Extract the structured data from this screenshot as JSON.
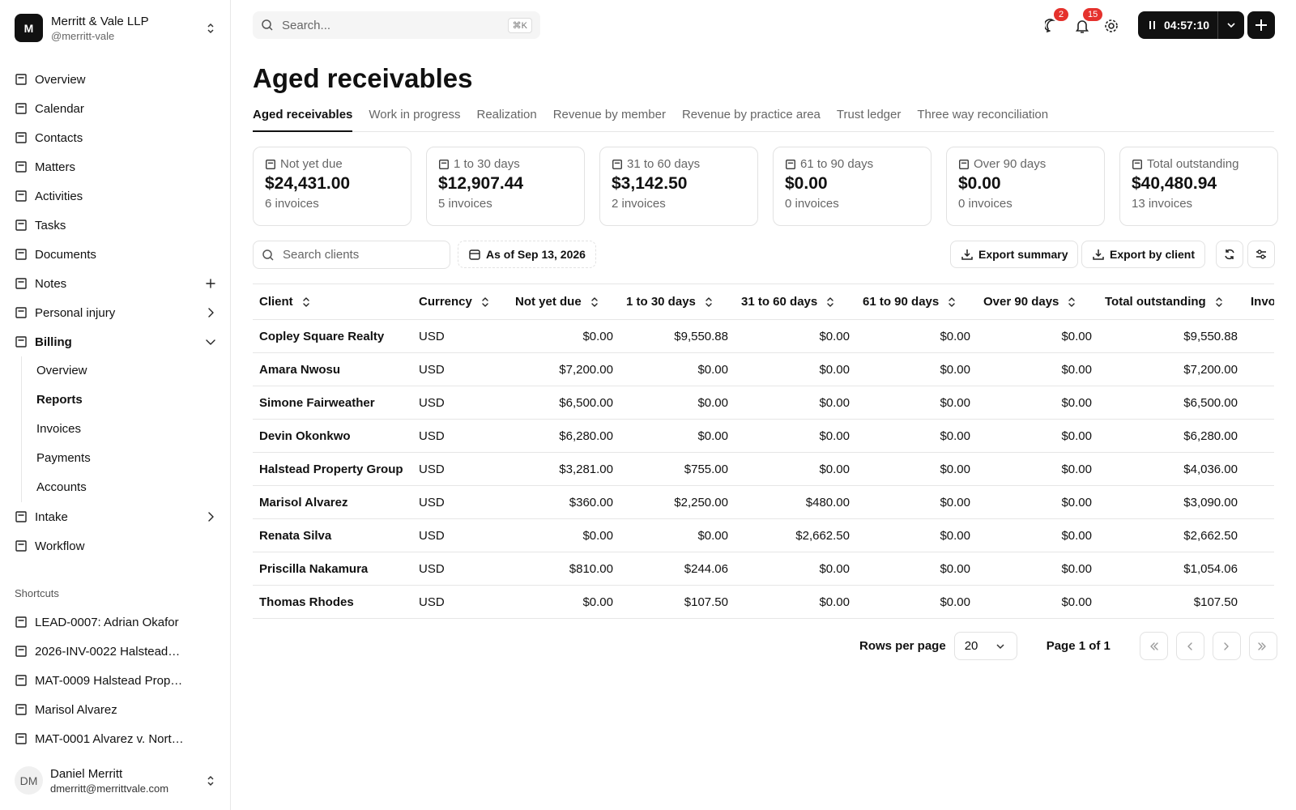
{
  "sidebar": {
    "org": {
      "initial": "M",
      "name": "Merritt & Vale LLP",
      "handle": "@merritt-vale"
    },
    "nav": [
      {
        "label": "Overview"
      },
      {
        "label": "Calendar"
      },
      {
        "label": "Contacts"
      },
      {
        "label": "Matters"
      },
      {
        "label": "Activities"
      },
      {
        "label": "Tasks"
      },
      {
        "label": "Documents"
      },
      {
        "label": "Notes",
        "trailing": "plus"
      },
      {
        "label": "Personal injury",
        "trailing": "right"
      },
      {
        "label": "Billing",
        "trailing": "down",
        "bold": true,
        "children": [
          {
            "label": "Overview"
          },
          {
            "label": "Reports",
            "active": true
          },
          {
            "label": "Invoices"
          },
          {
            "label": "Payments"
          },
          {
            "label": "Accounts"
          }
        ]
      },
      {
        "label": "Intake",
        "trailing": "right"
      },
      {
        "label": "Workflow"
      }
    ],
    "shortcuts_title": "Shortcuts",
    "shortcuts": [
      "LEAD-0007: Adrian Okafor",
      "2026-INV-0022 Halstead…",
      "MAT-0009 Halstead Prop…",
      "Marisol Alvarez",
      "MAT-0001 Alvarez v. Nort…"
    ],
    "user": {
      "initials": "DM",
      "name": "Daniel Merritt",
      "email": "dmerritt@merrittvale.com"
    }
  },
  "topbar": {
    "search": "Search...",
    "shortcut": "⌘K",
    "messages": "2",
    "notifications": "15",
    "timer": "04:57:10"
  },
  "page": {
    "title": "Aged receivables",
    "tabs": [
      "Aged receivables",
      "Work in progress",
      "Realization",
      "Revenue by member",
      "Revenue by practice area",
      "Trust ledger",
      "Three way reconciliation"
    ],
    "active_tab": 0,
    "cards": [
      {
        "label": "Not yet due",
        "amount": "$24,431.00",
        "count": "6 invoices"
      },
      {
        "label": "1 to 30 days",
        "amount": "$12,907.44",
        "count": "5 invoices"
      },
      {
        "label": "31 to 60 days",
        "amount": "$3,142.50",
        "count": "2 invoices"
      },
      {
        "label": "61 to 90 days",
        "amount": "$0.00",
        "count": "0 invoices"
      },
      {
        "label": "Over 90 days",
        "amount": "$0.00",
        "count": "0 invoices"
      },
      {
        "label": "Total outstanding",
        "amount": "$40,480.94",
        "count": "13 invoices"
      }
    ],
    "client_search": "Search clients",
    "as_of": "As of Sep 13, 2026",
    "export_summary": "Export summary",
    "export_by_client": "Export by client"
  },
  "table": {
    "columns": [
      "Client",
      "Currency",
      "Not yet due",
      "1 to 30 days",
      "31 to 60 days",
      "61 to 90 days",
      "Over 90 days",
      "Total outstanding",
      "Invo"
    ],
    "rows": [
      [
        "Copley Square Realty",
        "USD",
        "$0.00",
        "$9,550.88",
        "$0.00",
        "$0.00",
        "$0.00",
        "$9,550.88"
      ],
      [
        "Amara Nwosu",
        "USD",
        "$7,200.00",
        "$0.00",
        "$0.00",
        "$0.00",
        "$0.00",
        "$7,200.00"
      ],
      [
        "Simone Fairweather",
        "USD",
        "$6,500.00",
        "$0.00",
        "$0.00",
        "$0.00",
        "$0.00",
        "$6,500.00"
      ],
      [
        "Devin Okonkwo",
        "USD",
        "$6,280.00",
        "$0.00",
        "$0.00",
        "$0.00",
        "$0.00",
        "$6,280.00"
      ],
      [
        "Halstead Property Group",
        "USD",
        "$3,281.00",
        "$755.00",
        "$0.00",
        "$0.00",
        "$0.00",
        "$4,036.00"
      ],
      [
        "Marisol Alvarez",
        "USD",
        "$360.00",
        "$2,250.00",
        "$480.00",
        "$0.00",
        "$0.00",
        "$3,090.00"
      ],
      [
        "Renata Silva",
        "USD",
        "$0.00",
        "$0.00",
        "$2,662.50",
        "$0.00",
        "$0.00",
        "$2,662.50"
      ],
      [
        "Priscilla Nakamura",
        "USD",
        "$810.00",
        "$244.06",
        "$0.00",
        "$0.00",
        "$0.00",
        "$1,054.06"
      ],
      [
        "Thomas Rhodes",
        "USD",
        "$0.00",
        "$107.50",
        "$0.00",
        "$0.00",
        "$0.00",
        "$107.50"
      ]
    ]
  },
  "pagination": {
    "rows_per_page": "Rows per page",
    "page_size": "20",
    "page": "Page 1 of 1"
  }
}
